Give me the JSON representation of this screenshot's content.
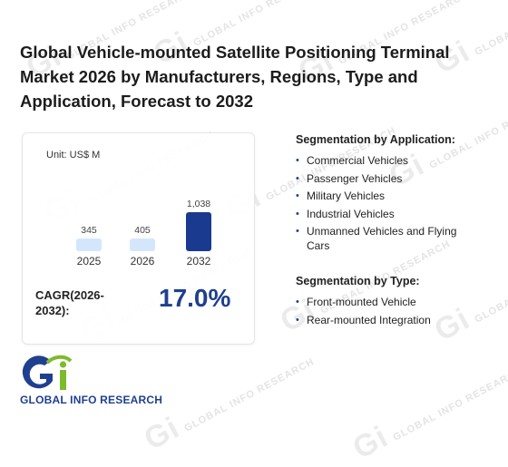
{
  "title": "Global Vehicle-mounted Satellite Positioning Terminal Market 2026 by Manufacturers, Regions, Type and Application, Forecast to 2032",
  "card": {
    "unit": "Unit: US$ M",
    "cagr_label": "CAGR(2026-2032):",
    "cagr_value": "17.0%"
  },
  "chart_data": {
    "type": "bar",
    "categories": [
      "2025",
      "2026",
      "2032"
    ],
    "values": [
      345,
      405,
      1038
    ],
    "value_labels": [
      "345",
      "405",
      "1,038"
    ],
    "colors": [
      "#d4e6fb",
      "#d4e6fb",
      "#1a3a8f"
    ],
    "ylim": [
      0,
      1100
    ],
    "grid": false
  },
  "segmentation_application": {
    "heading": "Segmentation by Application:",
    "items": [
      "Commercial Vehicles",
      "Passenger Vehicles",
      "Military Vehicles",
      "Industrial Vehicles",
      "Unmanned Vehicles and Flying Cars"
    ]
  },
  "segmentation_type": {
    "heading": "Segmentation by Type:",
    "items": [
      "Front-mounted Vehicle",
      "Rear-mounted Integration"
    ]
  },
  "logo": {
    "mark": "Gi",
    "text": "GLOBAL INFO RESEARCH",
    "colors": {
      "primary": "#1f3f8f",
      "accent": "#7dbb2b"
    }
  },
  "watermark": {
    "text": "GLOBAL INFO RESEARCH",
    "mark": "Gi"
  }
}
